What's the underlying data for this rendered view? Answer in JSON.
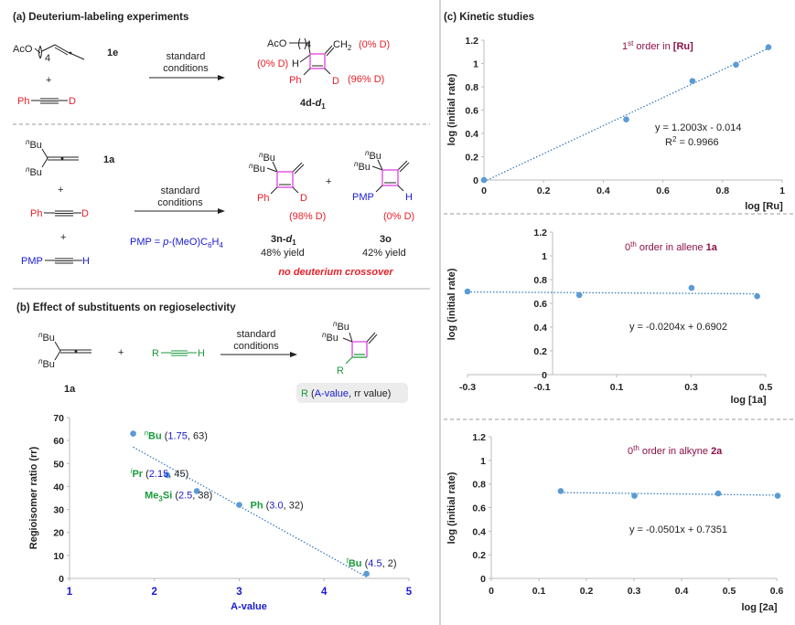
{
  "panel_a": {
    "title": "(a) Deuterium-labeling experiments",
    "exp1": {
      "sm1_aco": "AcO",
      "sm1_sub": "4",
      "sm1_label": "1e",
      "plus": "+",
      "alkyne_left": "Ph",
      "alkyne_right": "D",
      "arrow_top": "standard",
      "arrow_bottom": "conditions",
      "prod_aco": "AcO",
      "prod_sub": "4",
      "prod_ch2": "CH",
      "prod_ch2_sub": "2",
      "d_ch2": "(0% D)",
      "d_h": "(0% D)",
      "h": "H",
      "ph": "Ph",
      "d": "D",
      "d_vinyl": "(96% D)",
      "prod_label": "4d-",
      "prod_label_it": "d",
      "prod_label_sub": "1"
    },
    "exp2": {
      "sm_bu_sup": "n",
      "sm_bu": "Bu",
      "sm_label": "1a",
      "plus": "+",
      "alk1_left": "Ph",
      "alk1_right": "D",
      "alk2_left": "PMP",
      "alk2_right": "H",
      "arrow_top": "standard",
      "arrow_bottom": "conditions",
      "pmp_def": "PMP = ",
      "pmp_p": "p",
      "pmp_rest": "-(MeO)C",
      "pmp_sub1": "6",
      "pmp_h": "H",
      "pmp_sub2": "4",
      "p1_ph": "Ph",
      "p1_d": "D",
      "p1_pct": "(98% D)",
      "p1_label": "3n-",
      "p1_label_it": "d",
      "p1_label_sub": "1",
      "p1_yield": "48% yield",
      "p2_pmp": "PMP",
      "p2_h": "H",
      "p2_pct": "(0% D)",
      "p2_label": "3o",
      "p2_yield": "42% yield",
      "note": "no deuterium crossover"
    }
  },
  "panel_b": {
    "title": "(b) Effect of substituents on regioselectivity",
    "sm_bu_sup": "n",
    "sm_bu": "Bu",
    "sm_label": "1a",
    "plus": "+",
    "alk_left": "R",
    "alk_right": "H",
    "arrow_top": "standard",
    "arrow_bottom": "conditions",
    "prod_r": "R",
    "legend_r": "R",
    "legend_open": " (",
    "legend_a": "A-value",
    "legend_rest": ", rr value)"
  },
  "panel_c": {
    "title": "(c) Kinetic studies"
  },
  "colors": {
    "point": "#5b9bd5",
    "trend": "#3a7cc0",
    "ring": "#e040e0",
    "red": "#e8202a",
    "blue": "#1a1ad0",
    "green": "#1a9a3a",
    "maroon": "#8b1048"
  },
  "chart_data": [
    {
      "id": "rr",
      "type": "scatter",
      "xlabel": "A-value",
      "ylabel": "Regioisomer ratio (rr)",
      "xlim": [
        1,
        5
      ],
      "ylim": [
        0,
        70
      ],
      "xticks": [
        "1",
        "2",
        "3",
        "4",
        "5"
      ],
      "yticks": [
        "0",
        "10",
        "20",
        "30",
        "40",
        "50",
        "60",
        "70"
      ],
      "trendline": "linear",
      "points": [
        {
          "sup": "n",
          "name": "Bu",
          "x": 1.75,
          "xs": "1.75",
          "y": 63
        },
        {
          "sup": "i",
          "name": "Pr",
          "x": 2.15,
          "xs": "2.15",
          "y": 45
        },
        {
          "sup": "",
          "name": "Me",
          "sub": "3",
          "name2": "Si",
          "x": 2.5,
          "xs": "2.5",
          "y": 38
        },
        {
          "sup": "",
          "name": "Ph",
          "x": 3.0,
          "xs": "3.0",
          "y": 32
        },
        {
          "sup": "t",
          "name": "Bu",
          "x": 4.5,
          "xs": "4.5",
          "y": 2
        }
      ]
    },
    {
      "id": "ru",
      "type": "scatter",
      "title_pre": "1",
      "title_sup": "st",
      "title_mid": " order in ",
      "title_bold": "[Ru]",
      "xlabel": "log [Ru]",
      "ylabel": "log (initial rate)",
      "xlim": [
        0,
        1
      ],
      "ylim": [
        0,
        1.2
      ],
      "xticks": [
        "0",
        "0.2",
        "0.4",
        "0.6",
        "0.8",
        "1"
      ],
      "yticks": [
        "0",
        "0.2",
        "0.4",
        "0.6",
        "0.8",
        "1",
        "1.2"
      ],
      "x": [
        0,
        0.477,
        0.699,
        0.845,
        0.954
      ],
      "y": [
        0,
        0.52,
        0.85,
        0.99,
        1.14
      ],
      "fit": {
        "slope": 1.2003,
        "intercept": -0.014,
        "range": [
          0,
          0.96
        ]
      },
      "equation": "y = 1.2003x - 0.014",
      "r2_pre": "R",
      "r2_sup": "2",
      "r2_rest": " = 0.9966"
    },
    {
      "id": "allene",
      "type": "scatter",
      "title_pre": "0",
      "title_sup": "th",
      "title_mid": " order in allene ",
      "title_bold": "1a",
      "xlabel": "log [1a]",
      "ylabel": "log (initial rate)",
      "xlim": [
        -0.3,
        0.5
      ],
      "ylim": [
        0,
        1.2
      ],
      "xticks": [
        "-0.3",
        "-0.1",
        "0.1",
        "0.3",
        "0.5"
      ],
      "yticks": [
        "0",
        "0.2",
        "0.4",
        "0.6",
        "0.8",
        "1",
        "1.2"
      ],
      "x": [
        -0.3,
        0,
        0.301,
        0.477
      ],
      "y": [
        0.7,
        0.67,
        0.73,
        0.66
      ],
      "fit": {
        "slope": -0.0204,
        "intercept": 0.6902,
        "range": [
          -0.3,
          0.48
        ]
      },
      "equation": "y = -0.0204x + 0.6902"
    },
    {
      "id": "alkyne",
      "type": "scatter",
      "title_pre": "0",
      "title_sup": "th",
      "title_mid": " order in alkyne ",
      "title_bold": "2a",
      "xlabel": "log [2a]",
      "ylabel": "log (initial rate)",
      "xlim": [
        0,
        0.6
      ],
      "ylim": [
        0,
        1.2
      ],
      "xticks": [
        "0",
        "0.1",
        "0.2",
        "0.3",
        "0.4",
        "0.5",
        "0.6"
      ],
      "yticks": [
        "0",
        "0.2",
        "0.4",
        "0.6",
        "0.8",
        "1",
        "1.2"
      ],
      "x": [
        0.146,
        0.301,
        0.477,
        0.602
      ],
      "y": [
        0.74,
        0.7,
        0.72,
        0.7
      ],
      "fit": {
        "slope": -0.0501,
        "intercept": 0.7351,
        "range": [
          0.146,
          0.6
        ]
      },
      "equation": "y = -0.0501x + 0.7351"
    }
  ]
}
